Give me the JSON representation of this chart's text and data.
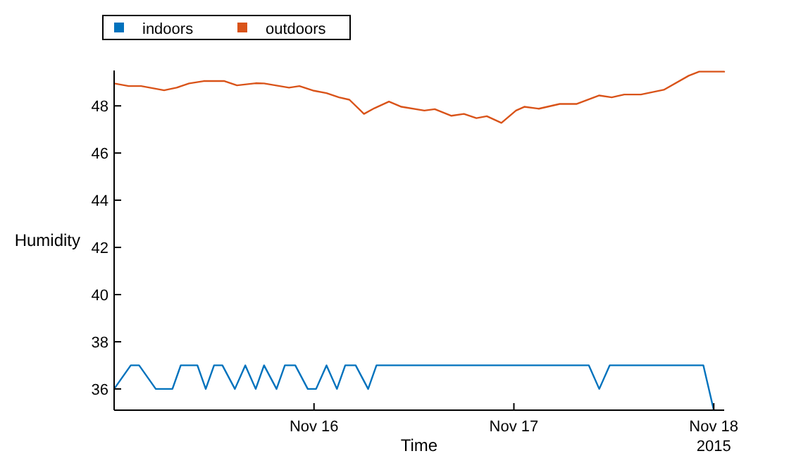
{
  "chart_data": {
    "type": "line",
    "xlabel": "Time",
    "ylabel": "Humidity",
    "annotations": [
      "2015"
    ],
    "xlim": [
      "2015-11-15T00:00",
      "2015-11-18T01:15"
    ],
    "ylim": [
      35.1,
      49.5
    ],
    "yticks": [
      36,
      38,
      40,
      42,
      44,
      46,
      48
    ],
    "xticks": [
      {
        "value": "2015-11-16",
        "label": "Nov 16"
      },
      {
        "value": "2015-11-17",
        "label": "Nov 17"
      },
      {
        "value": "2015-11-18",
        "label": "Nov 18"
      }
    ],
    "legend": "top left",
    "grid": false,
    "marker": "none",
    "line_style": "solid",
    "series": [
      {
        "name": "indoors",
        "color": "#0072bd",
        "x": [
          "2015-11-15T00:00",
          "2015-11-15T02:00",
          "2015-11-15T03:00",
          "2015-11-15T05:00",
          "2015-11-15T07:00",
          "2015-11-15T08:00",
          "2015-11-15T10:00",
          "2015-11-15T11:00",
          "2015-11-15T12:00",
          "2015-11-15T13:00",
          "2015-11-15T14:30",
          "2015-11-15T15:45",
          "2015-11-15T17:00",
          "2015-11-15T18:00",
          "2015-11-15T19:30",
          "2015-11-15T20:30",
          "2015-11-15T21:45",
          "2015-11-15T23:15",
          "2015-11-16T00:15",
          "2015-11-16T01:30",
          "2015-11-16T02:45",
          "2015-11-16T03:45",
          "2015-11-16T05:00",
          "2015-11-16T06:30",
          "2015-11-16T07:30",
          "2015-11-17T09:00",
          "2015-11-17T10:15",
          "2015-11-17T11:30",
          "2015-11-17T22:45",
          "2015-11-18T00:00"
        ],
        "values": [
          36,
          37,
          37,
          36,
          36,
          37,
          37,
          36,
          37,
          37,
          36,
          37,
          36,
          37,
          36,
          37,
          37,
          36,
          36,
          37,
          36,
          37,
          37,
          36,
          37,
          37,
          36,
          37,
          37,
          35.1
        ]
      },
      {
        "name": "outdoors",
        "color": "#d95319",
        "x": [
          "2015-11-15T00:00",
          "2015-11-15T01:45",
          "2015-11-15T03:15",
          "2015-11-15T06:00",
          "2015-11-15T07:30",
          "2015-11-15T09:00",
          "2015-11-15T10:45",
          "2015-11-15T13:15",
          "2015-11-15T14:45",
          "2015-11-15T17:00",
          "2015-11-15T18:00",
          "2015-11-15T21:00",
          "2015-11-15T22:15",
          "2015-11-16T00:00",
          "2015-11-16T01:30",
          "2015-11-16T03:00",
          "2015-11-16T04:15",
          "2015-11-16T06:00",
          "2015-11-16T07:15",
          "2015-11-16T09:00",
          "2015-11-16T10:30",
          "2015-11-16T13:15",
          "2015-11-16T14:30",
          "2015-11-16T16:30",
          "2015-11-16T18:00",
          "2015-11-16T19:30",
          "2015-11-16T20:45",
          "2015-11-16T22:30",
          "2015-11-17T00:15",
          "2015-11-17T01:15",
          "2015-11-17T03:00",
          "2015-11-17T05:30",
          "2015-11-17T07:30",
          "2015-11-17T10:15",
          "2015-11-17T11:45",
          "2015-11-17T13:15",
          "2015-11-17T15:15",
          "2015-11-17T18:00",
          "2015-11-17T21:00",
          "2015-11-17T22:15",
          "2015-11-18T01:15"
        ],
        "values": [
          48.95,
          48.84,
          48.84,
          48.66,
          48.77,
          48.95,
          49.05,
          49.05,
          48.87,
          48.96,
          48.95,
          48.77,
          48.84,
          48.64,
          48.54,
          48.36,
          48.26,
          47.66,
          47.9,
          48.18,
          47.96,
          47.8,
          47.86,
          47.58,
          47.66,
          47.48,
          47.56,
          47.28,
          47.8,
          47.96,
          47.88,
          48.08,
          48.08,
          48.44,
          48.36,
          48.48,
          48.48,
          48.68,
          49.28,
          49.45,
          49.45
        ]
      }
    ]
  }
}
